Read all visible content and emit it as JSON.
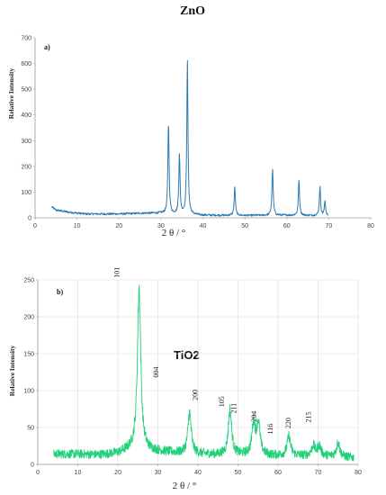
{
  "chart_data": [
    {
      "type": "line",
      "title": "ZnO",
      "panel_label": "a)",
      "xlabel": "2 θ / °",
      "ylabel": "Relative Intensity",
      "xlim": [
        0,
        80
      ],
      "ylim": [
        0,
        700
      ],
      "x_ticks": [
        0,
        10,
        20,
        30,
        40,
        50,
        60,
        70,
        80
      ],
      "y_ticks": [
        0,
        100,
        200,
        300,
        400,
        500,
        600,
        700
      ],
      "grid": false,
      "color": "#2a7ab0",
      "baseline": [
        [
          4,
          42
        ],
        [
          5,
          30
        ],
        [
          8,
          22
        ],
        [
          12,
          15
        ],
        [
          20,
          15
        ],
        [
          26,
          18
        ],
        [
          30,
          18
        ],
        [
          34,
          14
        ],
        [
          40,
          10
        ],
        [
          50,
          9
        ],
        [
          60,
          10
        ],
        [
          70,
          8
        ]
      ],
      "peaks": [
        {
          "x": 31.8,
          "y": 365
        },
        {
          "x": 34.4,
          "y": 250
        },
        {
          "x": 36.3,
          "y": 600
        },
        {
          "x": 47.6,
          "y": 118
        },
        {
          "x": 56.6,
          "y": 190
        },
        {
          "x": 62.9,
          "y": 147
        },
        {
          "x": 67.9,
          "y": 118
        },
        {
          "x": 69.1,
          "y": 65
        }
      ]
    },
    {
      "type": "line",
      "panel_label": "b)",
      "series_label": "TiO2",
      "xlabel": "2 θ / °",
      "ylabel": "Relative Intensity",
      "xlim": [
        0,
        80
      ],
      "ylim": [
        0,
        250
      ],
      "x_ticks": [
        0,
        10,
        20,
        30,
        40,
        50,
        60,
        70,
        80
      ],
      "y_ticks": [
        0,
        50,
        100,
        150,
        200,
        250
      ],
      "grid": true,
      "color": "#22d07a",
      "baseline": [
        [
          4,
          14
        ],
        [
          10,
          14
        ],
        [
          15,
          13
        ],
        [
          20,
          15
        ],
        [
          23,
          20
        ],
        [
          30,
          18
        ],
        [
          36,
          15
        ],
        [
          45,
          13
        ],
        [
          52,
          13
        ],
        [
          58,
          12
        ],
        [
          65,
          12
        ],
        [
          72,
          11
        ],
        [
          79,
          9
        ]
      ],
      "peaks": [
        {
          "x": 25.3,
          "y": 240
        },
        {
          "x": 37.9,
          "y": 70
        },
        {
          "x": 48.0,
          "y": 74
        },
        {
          "x": 53.9,
          "y": 55
        },
        {
          "x": 55.1,
          "y": 55
        },
        {
          "x": 62.7,
          "y": 38
        },
        {
          "x": 68.8,
          "y": 25
        },
        {
          "x": 70.3,
          "y": 25
        },
        {
          "x": 75.0,
          "y": 30
        }
      ],
      "reflections": [
        {
          "label": "101",
          "x": 20.3,
          "y": 260
        },
        {
          "label": "004",
          "x": 30.1,
          "y": 125
        },
        {
          "label": "200",
          "x": 39.9,
          "y": 94
        },
        {
          "label": "105",
          "x": 46.5,
          "y": 85
        },
        {
          "label": "211",
          "x": 49.5,
          "y": 76
        },
        {
          "label": "204",
          "x": 54.6,
          "y": 65
        },
        {
          "label": "116",
          "x": 58.7,
          "y": 48
        },
        {
          "label": "220",
          "x": 63.2,
          "y": 56
        },
        {
          "label": "215",
          "x": 68.2,
          "y": 64
        }
      ]
    }
  ]
}
